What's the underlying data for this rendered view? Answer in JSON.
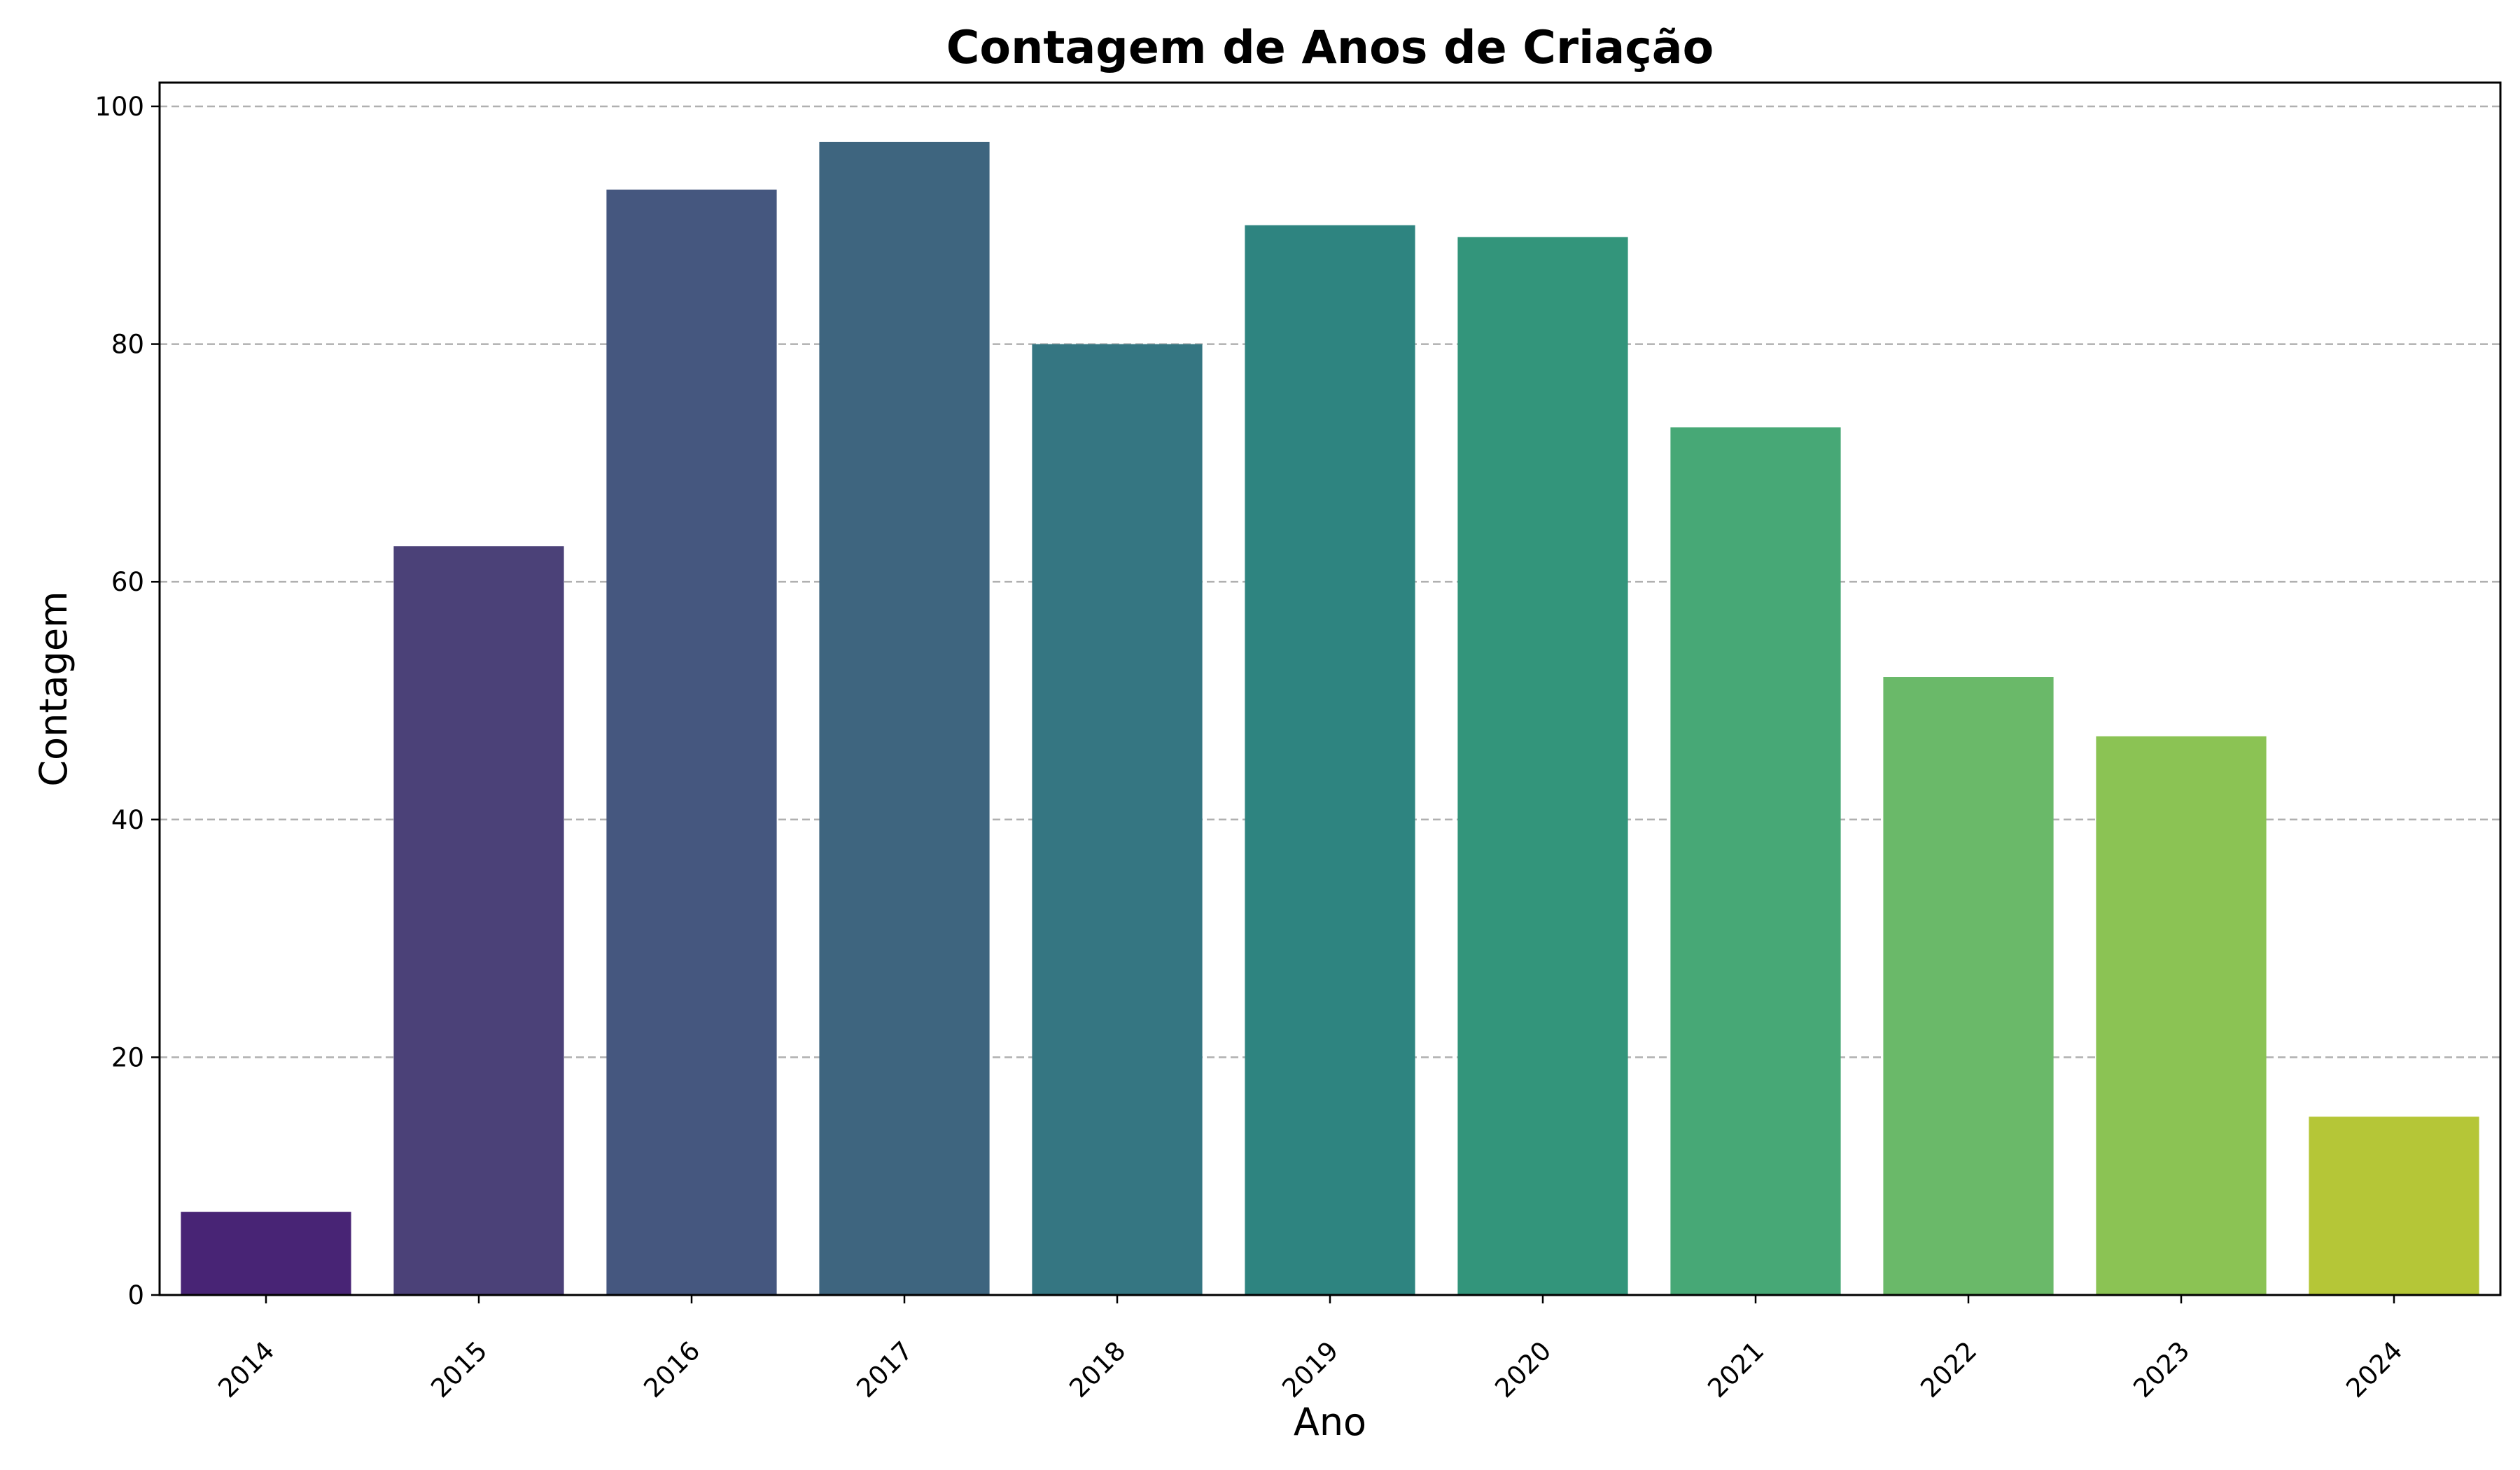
{
  "chart_data": {
    "type": "bar",
    "title": "Contagem de Anos de Criação",
    "xlabel": "Ano",
    "ylabel": "Contagem",
    "categories": [
      "2014",
      "2015",
      "2016",
      "2017",
      "2018",
      "2019",
      "2020",
      "2021",
      "2022",
      "2023",
      "2024"
    ],
    "values": [
      7,
      63,
      93,
      97,
      80,
      90,
      89,
      73,
      52,
      47,
      15
    ],
    "colors": [
      "#482475",
      "#4b4178",
      "#45577f",
      "#3e657f",
      "#357682",
      "#2e8480",
      "#33957b",
      "#47a876",
      "#6ab969",
      "#8bc354",
      "#b5c637"
    ],
    "ylim": [
      0,
      102
    ],
    "yticks": [
      0,
      20,
      40,
      60,
      80,
      100
    ],
    "grid": "y-dashed",
    "legend": "none"
  }
}
